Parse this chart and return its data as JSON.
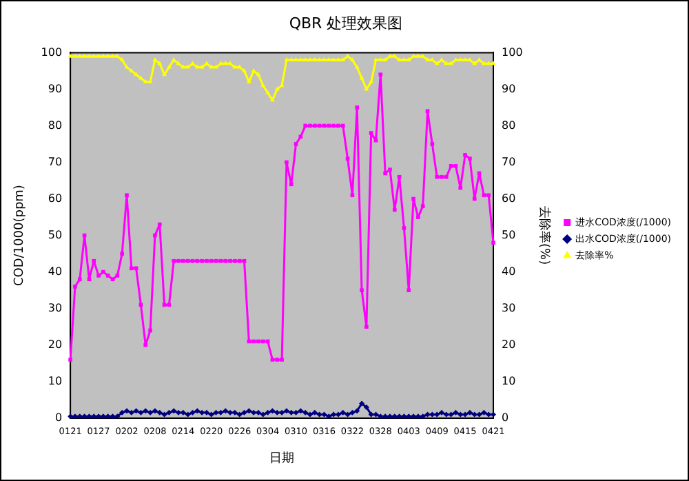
{
  "chart_data": {
    "type": "line",
    "title": "QBR 处理效果图",
    "xlabel": "日期",
    "ylabel": "COD/1000(ppm)",
    "y2label": "去除率(%)",
    "categories": [
      "0121",
      null,
      null,
      null,
      null,
      null,
      "0127",
      null,
      null,
      null,
      null,
      null,
      "0202",
      null,
      null,
      null,
      null,
      null,
      "0208",
      null,
      null,
      null,
      null,
      null,
      "0214",
      null,
      null,
      null,
      null,
      null,
      "0220",
      null,
      null,
      null,
      null,
      null,
      "0226",
      null,
      null,
      null,
      null,
      null,
      "0304",
      null,
      null,
      null,
      null,
      null,
      "0310",
      null,
      null,
      null,
      null,
      null,
      "0316",
      null,
      null,
      null,
      null,
      null,
      "0322",
      null,
      null,
      null,
      null,
      null,
      "0328",
      null,
      null,
      null,
      null,
      null,
      "0403",
      null,
      null,
      null,
      null,
      null,
      "0409",
      null,
      null,
      null,
      null,
      null,
      "0415",
      null,
      null,
      null,
      null,
      null,
      "0421"
    ],
    "series": [
      {
        "name": "进水COD浓度(/1000)",
        "color": "#ff00ff",
        "marker": "square",
        "values": [
          16,
          36,
          38,
          50,
          38,
          43,
          39,
          40,
          39,
          38,
          39,
          45,
          61,
          41,
          41,
          31,
          20,
          24,
          50,
          53,
          31,
          31,
          43,
          43,
          43,
          43,
          43,
          43,
          43,
          43,
          43,
          43,
          43,
          43,
          43,
          43,
          43,
          43,
          21,
          21,
          21,
          21,
          21,
          16,
          16,
          16,
          70,
          64,
          75,
          77,
          80,
          80,
          80,
          80,
          80,
          80,
          80,
          80,
          80,
          71,
          61,
          85,
          35,
          25,
          78,
          76,
          94,
          67,
          68,
          57,
          66,
          52,
          35,
          60,
          55,
          58,
          84,
          75,
          66,
          66,
          66,
          69,
          69,
          63,
          72,
          71,
          60,
          67,
          61,
          61,
          48
        ]
      },
      {
        "name": "出水COD浓度(/1000)",
        "color": "#000080",
        "marker": "diamond",
        "values": [
          0.5,
          0.5,
          0.5,
          0.5,
          0.5,
          0.5,
          0.5,
          0.5,
          0.5,
          0.5,
          0.5,
          1.5,
          2,
          1.5,
          2,
          1.5,
          2,
          1.5,
          2,
          1.5,
          1,
          1.5,
          2,
          1.5,
          1.5,
          1,
          1.5,
          2,
          1.5,
          1.5,
          1,
          1.5,
          1.5,
          2,
          1.5,
          1.5,
          1,
          1.5,
          2,
          1.5,
          1.5,
          1,
          1.5,
          2,
          1.5,
          1.5,
          2,
          1.5,
          1.5,
          2,
          1.5,
          1,
          1.5,
          1,
          1,
          0.5,
          1,
          1,
          1.5,
          1,
          1.5,
          2,
          4,
          3,
          1,
          1,
          0.5,
          0.5,
          0.5,
          0.5,
          0.5,
          0.5,
          0.5,
          0.5,
          0.5,
          0.5,
          1,
          1,
          1,
          1.5,
          1,
          1,
          1.5,
          1,
          1,
          1.5,
          1,
          1,
          1.5,
          1,
          1
        ]
      },
      {
        "name": "去除率%",
        "color": "#ffff00",
        "marker": "triangle",
        "axis": "y2",
        "values": [
          99,
          99,
          99,
          99,
          99,
          99,
          99,
          99,
          99,
          99,
          99,
          98,
          96,
          95,
          94,
          93,
          92,
          92,
          98,
          97,
          94,
          96,
          98,
          97,
          96,
          96,
          97,
          96,
          96,
          97,
          96,
          96,
          97,
          97,
          97,
          96,
          96,
          95,
          92,
          95,
          94,
          91,
          89,
          87,
          90,
          91,
          98,
          98,
          98,
          98,
          98,
          98,
          98,
          98,
          98,
          98,
          98,
          98,
          98,
          99,
          98,
          96,
          93,
          90,
          92,
          98,
          98,
          98,
          99,
          99,
          98,
          98,
          98,
          99,
          99,
          99,
          98,
          98,
          97,
          98,
          97,
          97,
          98,
          98,
          98,
          98,
          97,
          98,
          97,
          97,
          97
        ]
      }
    ],
    "ylim": [
      0,
      100
    ],
    "yticks": [
      0,
      10,
      20,
      30,
      40,
      50,
      60,
      70,
      80,
      90,
      100
    ],
    "y2lim": [
      0,
      100
    ],
    "y2ticks": [
      0,
      10,
      20,
      30,
      40,
      50,
      60,
      70,
      80,
      90,
      100
    ],
    "grid": false,
    "legend": "right"
  }
}
